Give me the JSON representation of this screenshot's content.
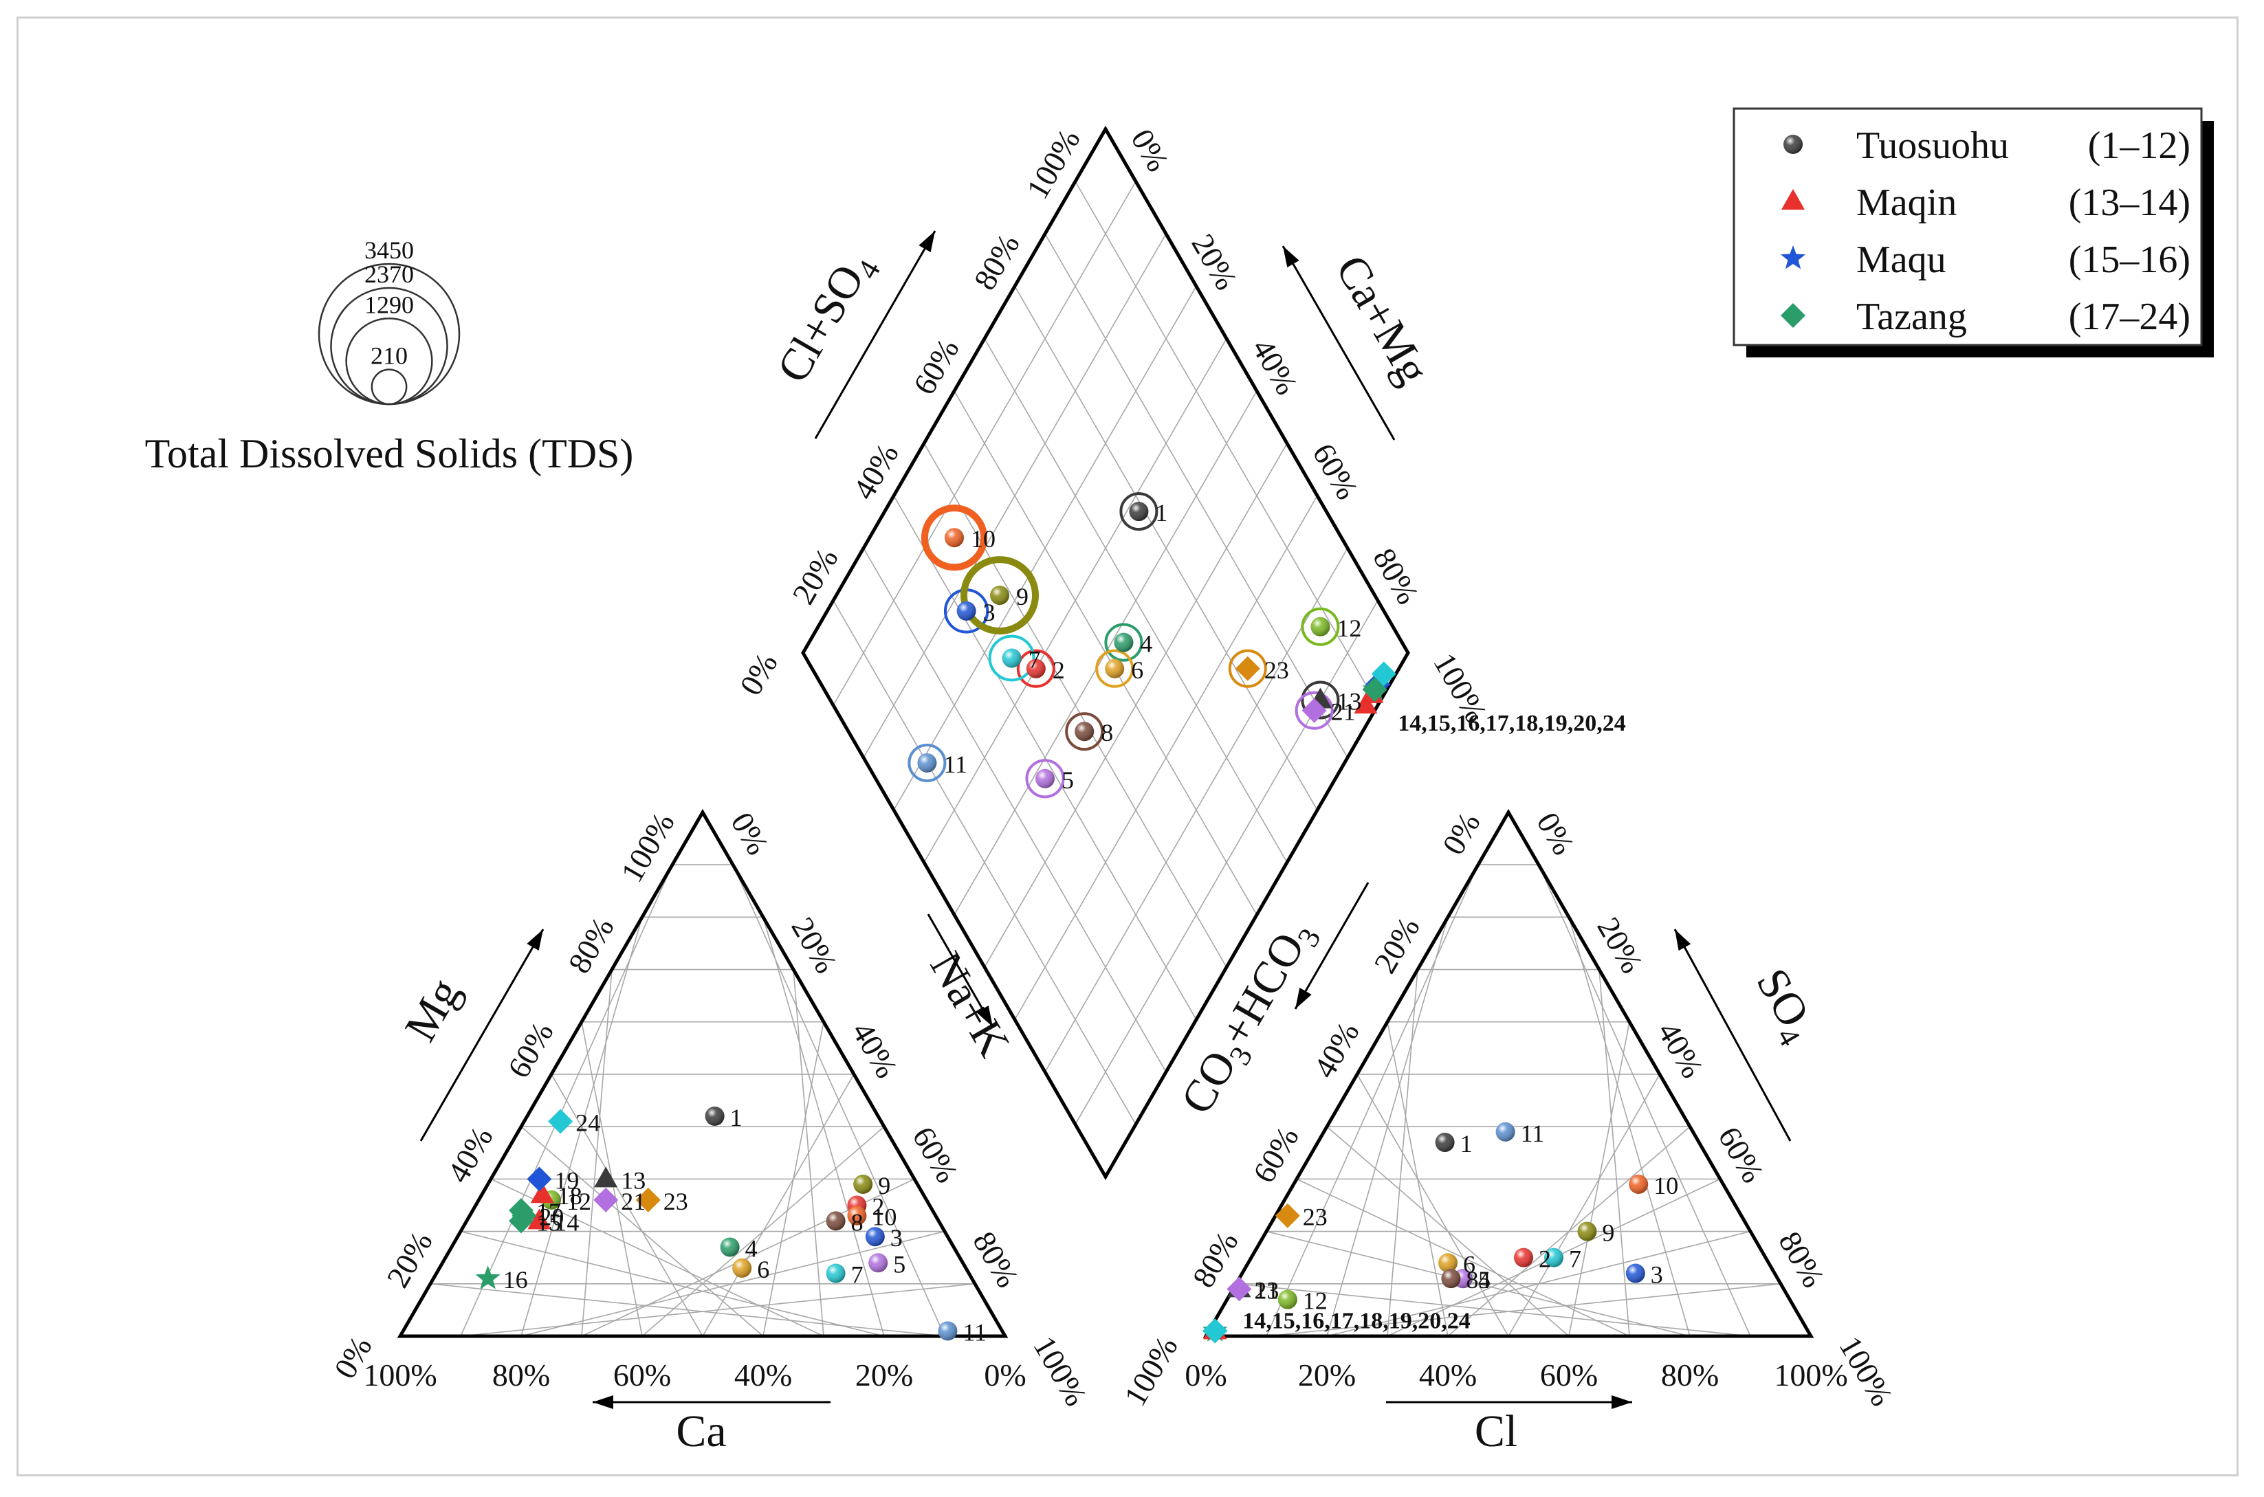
{
  "chart_data": {
    "type": "piper",
    "cation_axes": {
      "left": "Mg",
      "bottom": "Ca",
      "right": "Na+K"
    },
    "anion_axes": {
      "left": "CO3+HCO3",
      "bottom": "Cl",
      "right": "SO4"
    },
    "diamond_axes": {
      "upper_left": "Cl+SO4",
      "upper_right": "Ca+Mg"
    },
    "ticks": [
      "0%",
      "20%",
      "40%",
      "60%",
      "80%",
      "100%"
    ],
    "group_label_note": "14,15,16,17,18,19,20,24",
    "tds_legend": {
      "title": "Total Dissolved Solids (TDS)",
      "values": [
        3450,
        2370,
        1290,
        210
      ]
    },
    "legend": [
      {
        "name": "Tuosuohu",
        "range": "(1–12)",
        "marker": "sphere",
        "color": "#3a3a3a"
      },
      {
        "name": "Maqin",
        "range": "(13–14)",
        "marker": "triangle",
        "color": "#e8302c"
      },
      {
        "name": "Maqu",
        "range": "(15–16)",
        "marker": "star",
        "color": "#1f55d6"
      },
      {
        "name": "Tazang",
        "range": "(17–24)",
        "marker": "diamond",
        "color": "#2a9d6a"
      }
    ],
    "samples": [
      {
        "id": "1",
        "marker": "sphere",
        "color": "#3a3a3a",
        "ca": 27,
        "mg": 42,
        "cl": 21,
        "so4": 37,
        "tds": 500
      },
      {
        "id": "2",
        "marker": "sphere",
        "color": "#e8302c",
        "ca": 12,
        "mg": 25,
        "cl": 45,
        "so4": 15,
        "tds": 450
      },
      {
        "id": "3",
        "marker": "sphere",
        "color": "#1f55d6",
        "ca": 12,
        "mg": 19,
        "cl": 65,
        "so4": 12,
        "tds": 1200
      },
      {
        "id": "4",
        "marker": "sphere",
        "color": "#2a9d6a",
        "ca": 37,
        "mg": 17,
        "cl": 37,
        "so4": 11,
        "tds": 250
      },
      {
        "id": "5",
        "marker": "sphere",
        "color": "#b26fe0",
        "ca": 14,
        "mg": 14,
        "cl": 37,
        "so4": 11,
        "tds": 900
      },
      {
        "id": "6",
        "marker": "sphere",
        "color": "#e0a020",
        "ca": 37,
        "mg": 13,
        "cl": 33,
        "so4": 14,
        "tds": 250
      },
      {
        "id": "7",
        "marker": "sphere",
        "color": "#22c8d4",
        "ca": 22,
        "mg": 12,
        "cl": 50,
        "so4": 15,
        "tds": 1300
      },
      {
        "id": "8",
        "marker": "sphere",
        "color": "#7a4a3a",
        "ca": 17,
        "mg": 22,
        "cl": 35,
        "so4": 11,
        "tds": 250
      },
      {
        "id": "9",
        "marker": "sphere",
        "color": "#8a8a10",
        "ca": 9,
        "mg": 29,
        "cl": 53,
        "so4": 20,
        "tds": 3450
      },
      {
        "id": "10",
        "marker": "sphere",
        "color": "#f06020",
        "ca": 13,
        "mg": 23,
        "cl": 57,
        "so4": 29,
        "tds": 2370
      },
      {
        "id": "11",
        "marker": "sphere",
        "color": "#5a8fd0",
        "ca": 9,
        "mg": 1,
        "cl": 30,
        "so4": 39,
        "tds": 800
      },
      {
        "id": "12",
        "marker": "sphere",
        "color": "#7ab820",
        "ca": 62,
        "mg": 26,
        "cl": 10,
        "so4": 7,
        "tds": 250
      },
      {
        "id": "13",
        "marker": "triangle",
        "color": "#3a3a3a",
        "ca": 51,
        "mg": 30,
        "cl": 1,
        "so4": 9,
        "tds": 250
      },
      {
        "id": "14",
        "marker": "triangle",
        "color": "#e8302c",
        "ca": 66,
        "mg": 22,
        "cl": 1,
        "so4": 1,
        "tds": 210
      },
      {
        "id": "15",
        "marker": "diamond",
        "color": "#2a9d6a",
        "ca": 69,
        "mg": 22,
        "cl": 1,
        "so4": 1,
        "tds": 210
      },
      {
        "id": "16",
        "marker": "star",
        "color": "#2a9d6a",
        "ca": 80,
        "mg": 11,
        "cl": 1,
        "so4": 1,
        "tds": 210
      },
      {
        "id": "17",
        "marker": "diamond",
        "color": "#2a9d6a",
        "ca": 68,
        "mg": 24,
        "cl": 1,
        "so4": 1,
        "tds": 210
      },
      {
        "id": "18",
        "marker": "triangle",
        "color": "#e8302c",
        "ca": 63,
        "mg": 27,
        "cl": 1,
        "so4": 1,
        "tds": 210
      },
      {
        "id": "19",
        "marker": "diamond",
        "color": "#1f55d6",
        "ca": 62,
        "mg": 30,
        "cl": 1,
        "so4": 1,
        "tds": 210
      },
      {
        "id": "20",
        "marker": "diamond",
        "color": "#2a9d6a",
        "ca": 68,
        "mg": 23,
        "cl": 1,
        "so4": 1,
        "tds": 210
      },
      {
        "id": "21",
        "marker": "diamond",
        "color": "#b26fe0",
        "ca": 53,
        "mg": 26,
        "cl": 1,
        "so4": 9,
        "tds": 420
      },
      {
        "id": "23",
        "marker": "diamond",
        "color": "#d88a10",
        "ca": 46,
        "mg": 26,
        "cl": 2,
        "so4": 23,
        "tds": 420
      },
      {
        "id": "24",
        "marker": "diamond",
        "color": "#22c8d4",
        "ca": 53,
        "mg": 41,
        "cl": 1,
        "so4": 1,
        "tds": 210
      }
    ]
  }
}
